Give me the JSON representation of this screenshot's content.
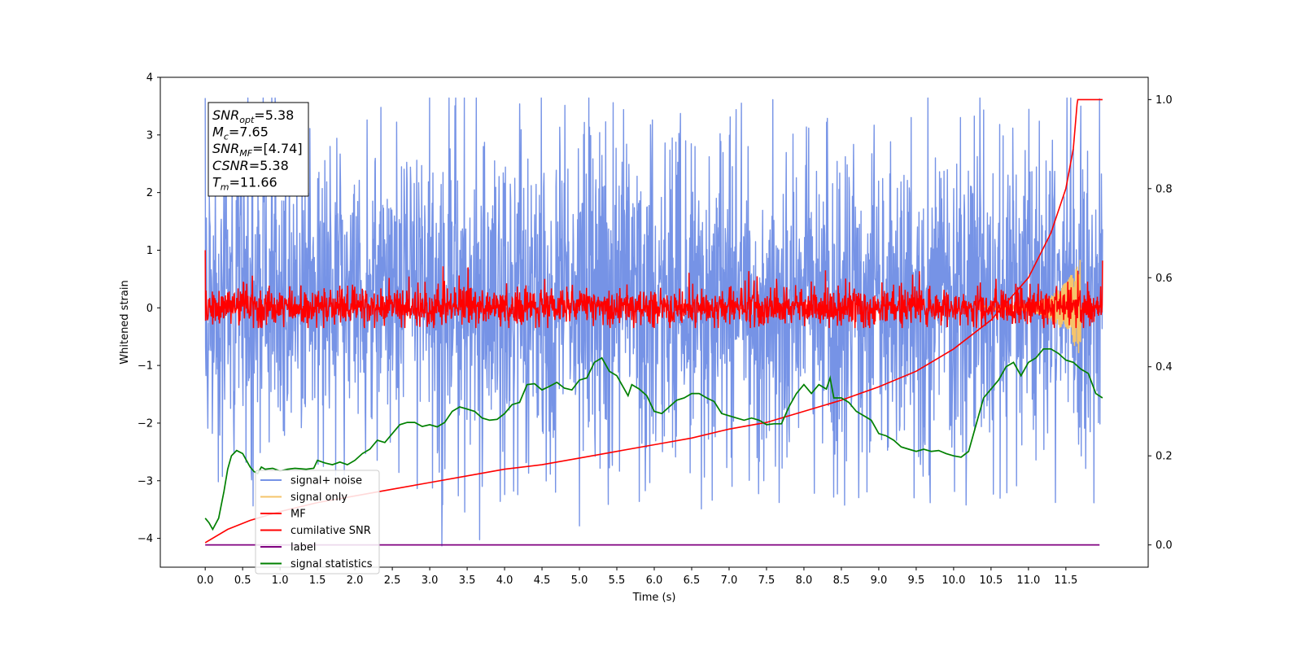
{
  "chart_data": {
    "type": "line",
    "xlabel": "Time (s)",
    "ylabel": "Whitened strain",
    "xlim": [
      -0.6,
      12.6
    ],
    "ylim": [
      -4.5,
      4.0
    ],
    "y2lim": [
      -0.05,
      1.05
    ],
    "x_ticks": [
      0.0,
      0.5,
      1.0,
      1.5,
      2.0,
      2.5,
      3.0,
      3.5,
      4.0,
      4.5,
      5.0,
      5.5,
      6.0,
      6.5,
      7.0,
      7.5,
      8.0,
      8.5,
      9.0,
      9.5,
      10.0,
      10.5,
      11.0,
      11.5
    ],
    "x_tick_labels": [
      "0.0",
      "0.5",
      "1.0",
      "1.5",
      "2.0",
      "2.5",
      "3.0",
      "3.5",
      "4.0",
      "4.5",
      "5.0",
      "5.5",
      "6.0",
      "6.5",
      "7.0",
      "7.5",
      "8.0",
      "8.5",
      "9.0",
      "9.5",
      "10.0",
      "10.5",
      "11.0",
      "11.5"
    ],
    "y_ticks": [
      4,
      3,
      2,
      1,
      0,
      -1,
      -2,
      -3,
      -4
    ],
    "y_tick_labels": [
      "4",
      "3",
      "2",
      "1",
      "0",
      "−1",
      "−2",
      "−3",
      "−4"
    ],
    "y2_ticks": [
      1.0,
      0.8,
      0.6,
      0.4,
      0.2,
      0.0
    ],
    "y2_tick_labels": [
      "1.0",
      "0.8",
      "0.6",
      "0.4",
      "0.2",
      "0.0"
    ],
    "grid": false,
    "legend_placement": "lower-left",
    "annotation": [
      {
        "base": "SNR",
        "sub": "opt",
        "rest": "=5.38"
      },
      {
        "base": "M",
        "sub": "c",
        "rest": "=7.65"
      },
      {
        "base": "SNR",
        "sub": "MF",
        "rest": "=[4.74]"
      },
      {
        "base": "CSNR",
        "sub": "",
        "rest": "=5.38"
      },
      {
        "base": "T",
        "sub": "m",
        "rest": "=11.66"
      }
    ],
    "series": [
      {
        "name": "signal+ noise",
        "color": "#7693e6",
        "axis": "left",
        "style": "noise",
        "x_range": [
          0.0,
          11.99
        ],
        "envelope_typical": [
          -1.9,
          2.2
        ],
        "extremes": [
          -4.13,
          3.64
        ]
      },
      {
        "name": "signal only",
        "color": "#f5c46b",
        "axis": "left",
        "style": "chirp",
        "x_range": [
          10.4,
          11.7
        ],
        "peak": [
          11.62,
          0.83
        ]
      },
      {
        "name": "MF",
        "color": "#ff0000",
        "axis": "left",
        "style": "noise",
        "x_range": [
          0.0,
          11.99
        ],
        "envelope_typical": [
          -0.33,
          0.35
        ],
        "extremes": [
          -0.35,
          1.0
        ]
      },
      {
        "name": "cumilative SNR",
        "color": "#ff0000",
        "axis": "right",
        "points": [
          [
            0.0,
            0.005
          ],
          [
            0.3,
            0.035
          ],
          [
            0.6,
            0.055
          ],
          [
            1.0,
            0.075
          ],
          [
            1.5,
            0.095
          ],
          [
            2.0,
            0.11
          ],
          [
            2.5,
            0.125
          ],
          [
            3.0,
            0.14
          ],
          [
            3.5,
            0.155
          ],
          [
            4.0,
            0.17
          ],
          [
            4.5,
            0.18
          ],
          [
            5.0,
            0.195
          ],
          [
            5.5,
            0.21
          ],
          [
            6.0,
            0.225
          ],
          [
            6.5,
            0.24
          ],
          [
            7.0,
            0.26
          ],
          [
            7.5,
            0.275
          ],
          [
            8.0,
            0.3
          ],
          [
            8.5,
            0.325
          ],
          [
            9.0,
            0.355
          ],
          [
            9.5,
            0.39
          ],
          [
            10.0,
            0.44
          ],
          [
            10.5,
            0.505
          ],
          [
            11.0,
            0.6
          ],
          [
            11.3,
            0.7
          ],
          [
            11.5,
            0.8
          ],
          [
            11.6,
            0.89
          ],
          [
            11.65,
            0.99
          ],
          [
            11.66,
            1.0
          ],
          [
            11.99,
            1.0
          ]
        ]
      },
      {
        "name": "label",
        "color": "#800080",
        "axis": "right",
        "points": [
          [
            0.0,
            0.0
          ],
          [
            11.95,
            0.0
          ]
        ]
      },
      {
        "name": "signal statistics",
        "color": "#008000",
        "axis": "right",
        "points": [
          [
            0.0,
            0.06
          ],
          [
            0.05,
            0.05
          ],
          [
            0.1,
            0.035
          ],
          [
            0.18,
            0.06
          ],
          [
            0.25,
            0.12
          ],
          [
            0.3,
            0.17
          ],
          [
            0.35,
            0.2
          ],
          [
            0.42,
            0.212
          ],
          [
            0.5,
            0.205
          ],
          [
            0.55,
            0.19
          ],
          [
            0.6,
            0.175
          ],
          [
            0.65,
            0.165
          ],
          [
            0.7,
            0.16
          ],
          [
            0.75,
            0.175
          ],
          [
            0.8,
            0.17
          ],
          [
            0.9,
            0.172
          ],
          [
            1.0,
            0.166
          ],
          [
            1.1,
            0.17
          ],
          [
            1.2,
            0.172
          ],
          [
            1.35,
            0.17
          ],
          [
            1.45,
            0.172
          ],
          [
            1.5,
            0.19
          ],
          [
            1.6,
            0.184
          ],
          [
            1.7,
            0.18
          ],
          [
            1.8,
            0.186
          ],
          [
            1.9,
            0.18
          ],
          [
            2.0,
            0.19
          ],
          [
            2.1,
            0.205
          ],
          [
            2.2,
            0.215
          ],
          [
            2.3,
            0.235
          ],
          [
            2.4,
            0.23
          ],
          [
            2.5,
            0.25
          ],
          [
            2.6,
            0.27
          ],
          [
            2.7,
            0.275
          ],
          [
            2.8,
            0.275
          ],
          [
            2.9,
            0.266
          ],
          [
            3.0,
            0.27
          ],
          [
            3.1,
            0.265
          ],
          [
            3.2,
            0.275
          ],
          [
            3.3,
            0.3
          ],
          [
            3.4,
            0.31
          ],
          [
            3.5,
            0.305
          ],
          [
            3.6,
            0.3
          ],
          [
            3.7,
            0.285
          ],
          [
            3.8,
            0.28
          ],
          [
            3.9,
            0.282
          ],
          [
            4.0,
            0.295
          ],
          [
            4.1,
            0.315
          ],
          [
            4.2,
            0.32
          ],
          [
            4.3,
            0.36
          ],
          [
            4.4,
            0.362
          ],
          [
            4.5,
            0.348
          ],
          [
            4.6,
            0.356
          ],
          [
            4.7,
            0.365
          ],
          [
            4.8,
            0.352
          ],
          [
            4.9,
            0.348
          ],
          [
            5.0,
            0.37
          ],
          [
            5.1,
            0.375
          ],
          [
            5.2,
            0.41
          ],
          [
            5.3,
            0.42
          ],
          [
            5.4,
            0.39
          ],
          [
            5.5,
            0.38
          ],
          [
            5.6,
            0.35
          ],
          [
            5.65,
            0.335
          ],
          [
            5.7,
            0.36
          ],
          [
            5.8,
            0.35
          ],
          [
            5.9,
            0.335
          ],
          [
            6.0,
            0.3
          ],
          [
            6.1,
            0.295
          ],
          [
            6.2,
            0.31
          ],
          [
            6.3,
            0.325
          ],
          [
            6.4,
            0.33
          ],
          [
            6.5,
            0.34
          ],
          [
            6.6,
            0.34
          ],
          [
            6.7,
            0.33
          ],
          [
            6.8,
            0.322
          ],
          [
            6.9,
            0.295
          ],
          [
            7.0,
            0.29
          ],
          [
            7.1,
            0.285
          ],
          [
            7.2,
            0.28
          ],
          [
            7.3,
            0.285
          ],
          [
            7.4,
            0.28
          ],
          [
            7.5,
            0.27
          ],
          [
            7.6,
            0.272
          ],
          [
            7.7,
            0.272
          ],
          [
            7.8,
            0.31
          ],
          [
            7.9,
            0.34
          ],
          [
            8.0,
            0.36
          ],
          [
            8.1,
            0.34
          ],
          [
            8.2,
            0.36
          ],
          [
            8.3,
            0.35
          ],
          [
            8.35,
            0.375
          ],
          [
            8.4,
            0.33
          ],
          [
            8.5,
            0.33
          ],
          [
            8.6,
            0.32
          ],
          [
            8.7,
            0.3
          ],
          [
            8.8,
            0.29
          ],
          [
            8.9,
            0.28
          ],
          [
            9.0,
            0.25
          ],
          [
            9.1,
            0.245
          ],
          [
            9.2,
            0.235
          ],
          [
            9.3,
            0.22
          ],
          [
            9.4,
            0.215
          ],
          [
            9.5,
            0.21
          ],
          [
            9.6,
            0.215
          ],
          [
            9.7,
            0.21
          ],
          [
            9.8,
            0.212
          ],
          [
            9.9,
            0.205
          ],
          [
            10.0,
            0.2
          ],
          [
            10.1,
            0.197
          ],
          [
            10.2,
            0.21
          ],
          [
            10.3,
            0.27
          ],
          [
            10.4,
            0.33
          ],
          [
            10.5,
            0.35
          ],
          [
            10.6,
            0.37
          ],
          [
            10.7,
            0.4
          ],
          [
            10.8,
            0.41
          ],
          [
            10.9,
            0.38
          ],
          [
            11.0,
            0.41
          ],
          [
            11.1,
            0.42
          ],
          [
            11.2,
            0.44
          ],
          [
            11.3,
            0.44
          ],
          [
            11.4,
            0.43
          ],
          [
            11.5,
            0.415
          ],
          [
            11.6,
            0.41
          ],
          [
            11.7,
            0.395
          ],
          [
            11.8,
            0.385
          ],
          [
            11.9,
            0.34
          ],
          [
            11.99,
            0.33
          ]
        ]
      }
    ]
  }
}
